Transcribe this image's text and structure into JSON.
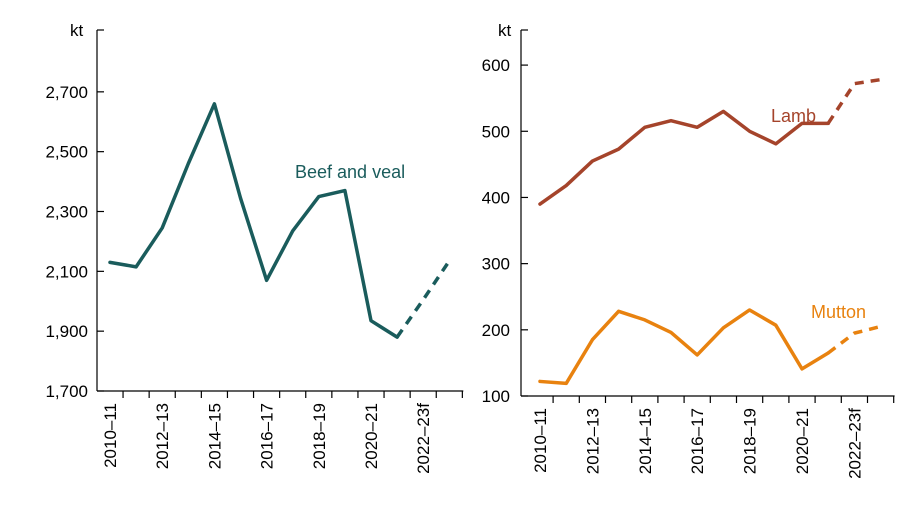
{
  "chart_data": [
    {
      "type": "line",
      "ylabel": "kt",
      "ylim": [
        1700,
        2900
      ],
      "yticks": [
        "1,700",
        "1,900",
        "2,100",
        "2,300",
        "2,500",
        "2,700"
      ],
      "ytick_values": [
        1700,
        1900,
        2100,
        2300,
        2500,
        2700
      ],
      "x": [
        "2010–11",
        "2011–12",
        "2012–13",
        "2013–14",
        "2014–15",
        "2015–16",
        "2016–17",
        "2017–18",
        "2018–19",
        "2019–20",
        "2020–21",
        "2021–22",
        "2022–23f",
        "2023–24f"
      ],
      "xtick_labels": [
        "2010–11",
        "2012–13",
        "2014–15",
        "2016–17",
        "2018–19",
        "2020–21",
        "2022–23f"
      ],
      "forecast_start_index": 11,
      "series": [
        {
          "name": "Beef and veal",
          "color": "#1a5c5c",
          "values": [
            2130,
            2115,
            2245,
            2460,
            2660,
            2345,
            2070,
            2235,
            2350,
            2370,
            1935,
            1880,
            2005,
            2135
          ]
        }
      ]
    },
    {
      "type": "line",
      "ylabel": "kt",
      "ylim": [
        100,
        650
      ],
      "yticks": [
        "100",
        "200",
        "300",
        "400",
        "500",
        "600"
      ],
      "ytick_values": [
        100,
        200,
        300,
        400,
        500,
        600
      ],
      "x": [
        "2010–11",
        "2011–12",
        "2012–13",
        "2013–14",
        "2014–15",
        "2015–16",
        "2016–17",
        "2017–18",
        "2018–19",
        "2019–20",
        "2020–21",
        "2021–22",
        "2022–23f",
        "2023–24f"
      ],
      "xtick_labels": [
        "2010–11",
        "2012–13",
        "2014–15",
        "2016–17",
        "2018–19",
        "2020–21",
        "2022–23f"
      ],
      "forecast_start_index": 11,
      "series": [
        {
          "name": "Lamb",
          "color": "#a5442b",
          "values": [
            390,
            418,
            455,
            473,
            506,
            516,
            506,
            530,
            500,
            481,
            512,
            512,
            572,
            578
          ]
        },
        {
          "name": "Mutton",
          "color": "#e8820f",
          "values": [
            122,
            119,
            185,
            228,
            215,
            196,
            162,
            203,
            230,
            207,
            141,
            165,
            195,
            205
          ]
        }
      ]
    }
  ]
}
